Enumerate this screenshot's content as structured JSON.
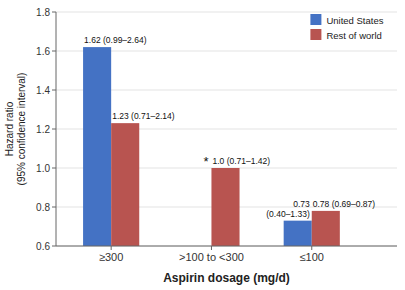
{
  "chart_data": {
    "type": "bar",
    "categories": [
      "≥300",
      ">100 to <300",
      "≤100"
    ],
    "series": [
      {
        "name": "United States",
        "color": "#4472C4",
        "values": [
          1.62,
          null,
          0.73
        ],
        "value_labels": [
          "1.62 (0.99–2.64)",
          null,
          "0.73\n(0.40–1.33)"
        ]
      },
      {
        "name": "Rest of world",
        "color": "#B85450",
        "values": [
          1.23,
          1.0,
          0.78
        ],
        "value_labels": [
          "1.23  (0.71–2.14)",
          "1.0 (0.71–1.42)",
          "0.78 (0.69–0.87)"
        ]
      }
    ],
    "data_labels": true,
    "annotations": [
      {
        "text": "*",
        "category": ">100 to <300"
      }
    ],
    "ylim": [
      0.6,
      1.8
    ],
    "yticks": [
      0.6,
      0.8,
      {
        "value": 1.0,
        "label": "1.0"
      },
      1.2,
      1.4,
      1.6,
      1.8
    ],
    "ylabel": "Hazard ratio\n(95% confidence interval)",
    "xlabel": "Aspirin dosage (mg/d)",
    "grid": true,
    "legend": "upper right"
  }
}
